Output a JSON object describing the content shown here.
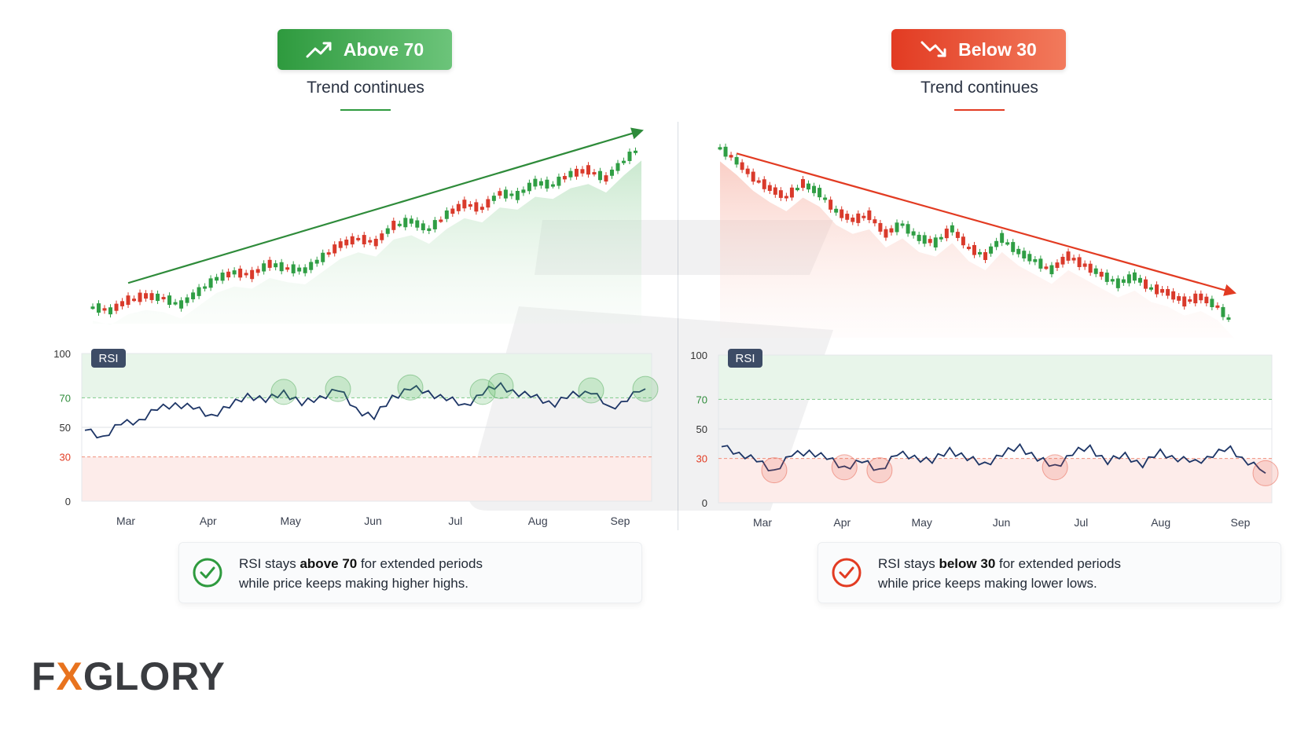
{
  "left": {
    "badge": "Above 70",
    "badge_color": "#2e9a3e",
    "badge_icon": "trend-up-icon",
    "subtitle": "Trend continues",
    "rsi_tag": "RSI",
    "note": {
      "pre": "RSI stays ",
      "bold": "above 70",
      "post": " for extended periods",
      "line2": "while price keeps making higher highs."
    }
  },
  "right": {
    "badge": "Below 30",
    "badge_color": "#e23b22",
    "badge_icon": "trend-down-icon",
    "subtitle": "Trend continues",
    "rsi_tag": "RSI",
    "note": {
      "pre": "RSI stays ",
      "bold": "below 30",
      "post": " for extended periods",
      "line2": "while price keeps making lower lows."
    }
  },
  "brand": {
    "pre": "F",
    "x": "X",
    "post": "GLORY"
  },
  "chart_data": [
    {
      "type": "line",
      "name": "uptrend-price",
      "months": [
        "Mar",
        "Apr",
        "May",
        "Jun",
        "Jul",
        "Aug",
        "Sep"
      ],
      "price": [
        40,
        38,
        43,
        45,
        44,
        41,
        47,
        53,
        56,
        55,
        60,
        58,
        57,
        63,
        69,
        72,
        70,
        78,
        80,
        76,
        83,
        88,
        86,
        93,
        92,
        98,
        97,
        102,
        104,
        100,
        108,
        115
      ],
      "rsi_levels": [
        100,
        70,
        50,
        30,
        0
      ],
      "rsi": [
        48,
        44,
        52,
        55,
        62,
        66,
        63,
        58,
        64,
        72,
        68,
        74,
        66,
        70,
        76,
        62,
        57,
        70,
        77,
        73,
        70,
        64,
        74,
        78,
        73,
        70,
        66,
        72,
        75,
        62,
        70,
        76
      ]
    },
    {
      "type": "line",
      "name": "downtrend-price",
      "months": [
        "Mar",
        "Apr",
        "May",
        "Jun",
        "Jul",
        "Aug",
        "Sep"
      ],
      "price": [
        110,
        104,
        97,
        92,
        88,
        94,
        90,
        82,
        78,
        80,
        72,
        76,
        70,
        68,
        74,
        66,
        62,
        70,
        64,
        60,
        56,
        62,
        58,
        54,
        50,
        53,
        48,
        46,
        42,
        44,
        40,
        32
      ],
      "rsi_levels": [
        100,
        70,
        50,
        30,
        0
      ],
      "rsi": [
        38,
        34,
        28,
        22,
        32,
        35,
        30,
        24,
        28,
        22,
        33,
        31,
        28,
        36,
        30,
        26,
        33,
        38,
        30,
        24,
        34,
        37,
        28,
        32,
        26,
        34,
        30,
        27,
        33,
        36,
        28,
        20
      ]
    }
  ]
}
